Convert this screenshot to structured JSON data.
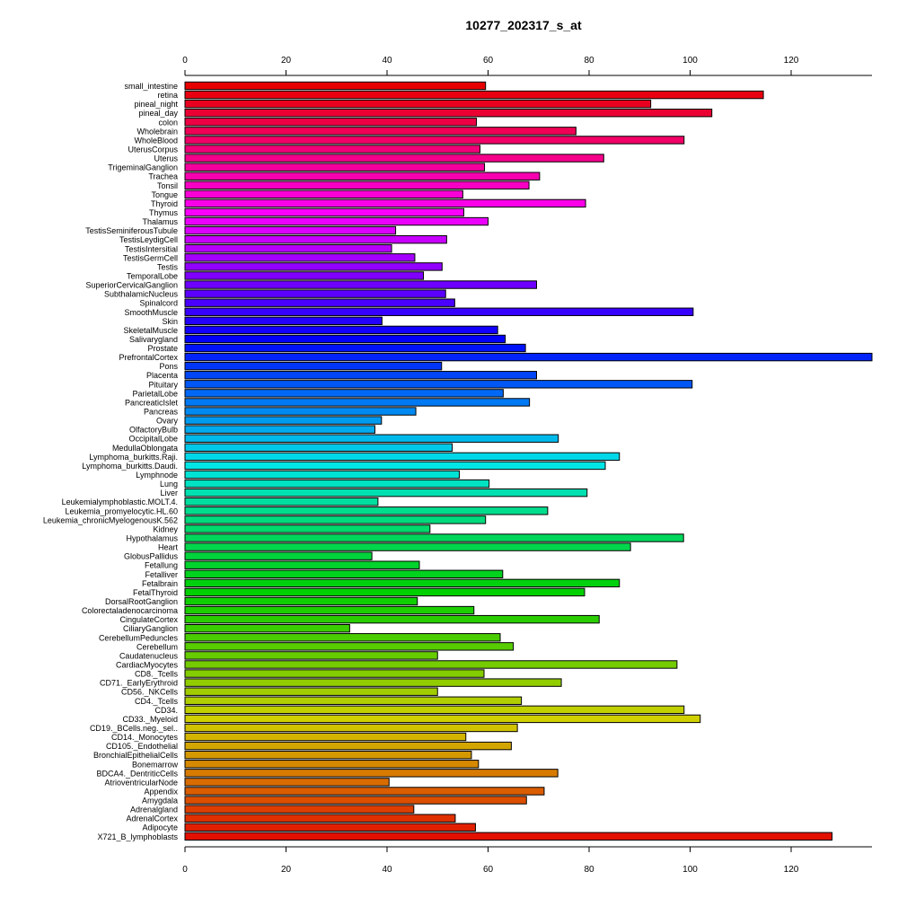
{
  "chart_data": {
    "type": "bar",
    "orientation": "horizontal",
    "title": "10277_202317_s_at",
    "xlabel": "",
    "ylabel": "",
    "xlim": [
      0,
      137
    ],
    "x_ticks": [
      0,
      20,
      40,
      60,
      80,
      100,
      120
    ],
    "axes": "top-and-bottom",
    "grid": false,
    "legend": "none",
    "bar_colors": "rainbow (hue gradient from red through magenta, blue, cyan, green, yellow, orange back to red), black outlines",
    "categories": [
      "small_intestine",
      "retina",
      "pineal_night",
      "pineal_day",
      "colon",
      "Wholebrain",
      "WholeBlood",
      "UterusCorpus",
      "Uterus",
      "TrigeminalGanglion",
      "Trachea",
      "Tonsil",
      "Tongue",
      "Thyroid",
      "Thymus",
      "Thalamus",
      "TestisSeminiferousTubule",
      "TestisLeydigCell",
      "TestisIntersitial",
      "TestisGermCell",
      "Testis",
      "TemporalLobe",
      "SuperiorCervicalGanglion",
      "SubthalamicNucleus",
      "Spinalcord",
      "SmoothMuscle",
      "Skin",
      "SkeletalMuscle",
      "Salivarygland",
      "Prostate",
      "PrefrontalCortex",
      "Pons",
      "Placenta",
      "Pituitary",
      "ParietalLobe",
      "PancreaticIslet",
      "Pancreas",
      "Ovary",
      "OlfactoryBulb",
      "OccipitalLobe",
      "MedullaOblongata",
      "Lymphoma_burkitts.Raji.",
      "Lymphoma_burkitts.Daudi.",
      "Lymphnode",
      "Lung",
      "Liver",
      "Leukemialymphoblastic.MOLT.4.",
      "Leukemia_promyelocytic.HL.60",
      "Leukemia_chronicMyelogenousK.562",
      "Kidney",
      "Hypothalamus",
      "Heart",
      "GlobusPallidus",
      "Fetallung",
      "Fetalliver",
      "Fetalbrain",
      "FetalThyroid",
      "DorsalRootGanglion",
      "Colorectaladenocarcinoma",
      "CingulateCortex",
      "CiliaryGanglion",
      "CerebellumPeduncles",
      "Cerebellum",
      "Caudatenucleus",
      "CardiacMyocytes",
      "CD8._Tcells",
      "CD71._EarlyErythroid",
      "CD56._NKCells",
      "CD4._Tcells",
      "CD34.",
      "CD33._Myeloid",
      "CD19._BCells.neg._sel..",
      "CD14._Monocytes",
      "CD105._Endothelial",
      "BronchialEpithelialCells",
      "Bonemarrow",
      "BDCA4._DentriticCells",
      "AtrioventricularNode",
      "Appendix",
      "Amygdala",
      "Adrenalgland",
      "AdrenalCortex",
      "Adipocyte",
      "X721_B_lymphoblasts"
    ],
    "values": [
      59.5,
      114.5,
      92.2,
      104.3,
      57.7,
      77.4,
      98.8,
      58.4,
      82.9,
      59.3,
      70.2,
      68.1,
      55.0,
      79.3,
      55.2,
      60.0,
      41.7,
      51.8,
      40.9,
      45.5,
      50.9,
      47.2,
      69.6,
      51.6,
      53.4,
      100.6,
      39.0,
      61.9,
      63.4,
      67.4,
      136.0,
      50.8,
      69.6,
      100.4,
      63.0,
      68.2,
      45.7,
      38.9,
      37.6,
      73.9,
      52.9,
      86.0,
      83.2,
      54.3,
      60.2,
      79.6,
      38.2,
      71.8,
      59.5,
      48.5,
      98.7,
      88.2,
      37.0,
      46.4,
      62.9,
      86.0,
      79.1,
      46.0,
      57.2,
      82.0,
      32.6,
      62.4,
      65.0,
      50.0,
      97.4,
      59.2,
      74.5,
      50.0,
      66.6,
      98.8,
      102.0,
      65.8,
      55.6,
      64.6,
      56.7,
      58.1,
      73.8,
      40.4,
      71.1,
      67.6,
      45.3,
      53.5,
      57.5,
      128.1
    ]
  }
}
